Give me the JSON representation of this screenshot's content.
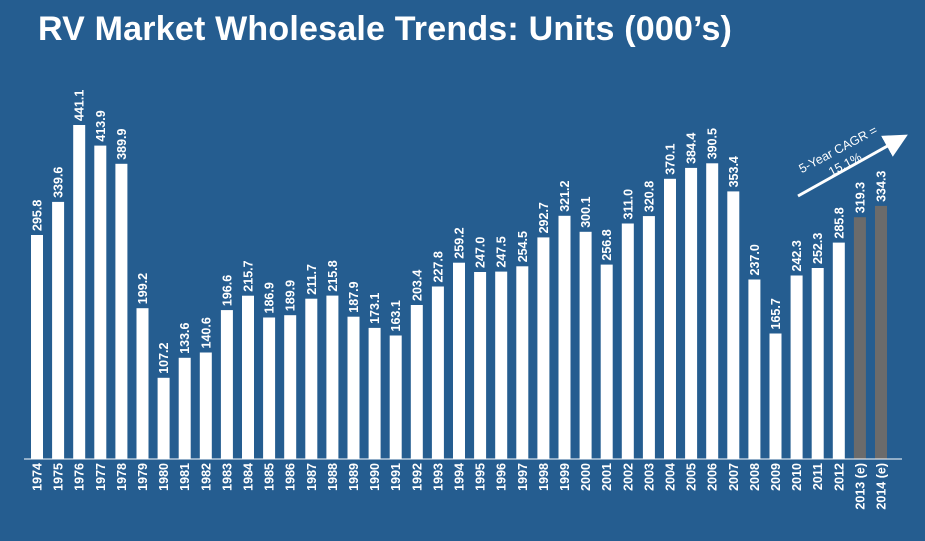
{
  "chart_data": {
    "type": "bar",
    "title": "RV Market Wholesale Trends: Units (000’s)",
    "xlabel": "",
    "ylabel": "",
    "ylim": [
      0,
      460
    ],
    "grid": false,
    "categories": [
      "1974",
      "1975",
      "1976",
      "1977",
      "1978",
      "1979",
      "1980",
      "1981",
      "1982",
      "1983",
      "1984",
      "1985",
      "1986",
      "1987",
      "1988",
      "1989",
      "1990",
      "1991",
      "1992",
      "1993",
      "1994",
      "1995",
      "1996",
      "1997",
      "1998",
      "1999",
      "2000",
      "2001",
      "2002",
      "2003",
      "2004",
      "2005",
      "2006",
      "2007",
      "2008",
      "2009",
      "2010",
      "2011",
      "2012",
      "2013 (e)",
      "2014 (e)"
    ],
    "values": [
      295.8,
      339.6,
      441.1,
      413.9,
      389.9,
      199.2,
      107.2,
      133.6,
      140.6,
      196.6,
      215.7,
      186.9,
      189.9,
      211.7,
      215.8,
      187.9,
      173.1,
      163.1,
      203.4,
      227.8,
      259.2,
      247.0,
      247.5,
      254.5,
      292.7,
      321.2,
      300.1,
      256.8,
      311.0,
      320.8,
      370.1,
      384.4,
      390.5,
      353.4,
      237.0,
      165.7,
      242.3,
      252.3,
      285.8,
      319.3,
      334.3
    ],
    "value_labels": [
      "295.8",
      "339.6",
      "441.1",
      "413.9",
      "389.9",
      "199.2",
      "107.2",
      "133.6",
      "140.6",
      "196.6",
      "215.7",
      "186.9",
      "189.9",
      "211.7",
      "215.8",
      "187.9",
      "173.1",
      "163.1",
      "203.4",
      "227.8",
      "259.2",
      "247.0",
      "247.5",
      "254.5",
      "292.7",
      "321.2",
      "300.1",
      "256.8",
      "311.0",
      "320.8",
      "370.1",
      "384.4",
      "390.5",
      "353.4",
      "237.0",
      "165.7",
      "242.3",
      "252.3",
      "285.8",
      "319.3",
      "334.3"
    ],
    "estimated": [
      false,
      false,
      false,
      false,
      false,
      false,
      false,
      false,
      false,
      false,
      false,
      false,
      false,
      false,
      false,
      false,
      false,
      false,
      false,
      false,
      false,
      false,
      false,
      false,
      false,
      false,
      false,
      false,
      false,
      false,
      false,
      false,
      false,
      false,
      false,
      false,
      false,
      false,
      false,
      true,
      true
    ],
    "colors": {
      "bar": "#ffffff",
      "estimate_bar": "#6b6b6b",
      "background": "#255d90",
      "text": "#ffffff"
    },
    "annotation": {
      "line1": "5-Year CAGR =",
      "line2": "15.1%"
    }
  }
}
